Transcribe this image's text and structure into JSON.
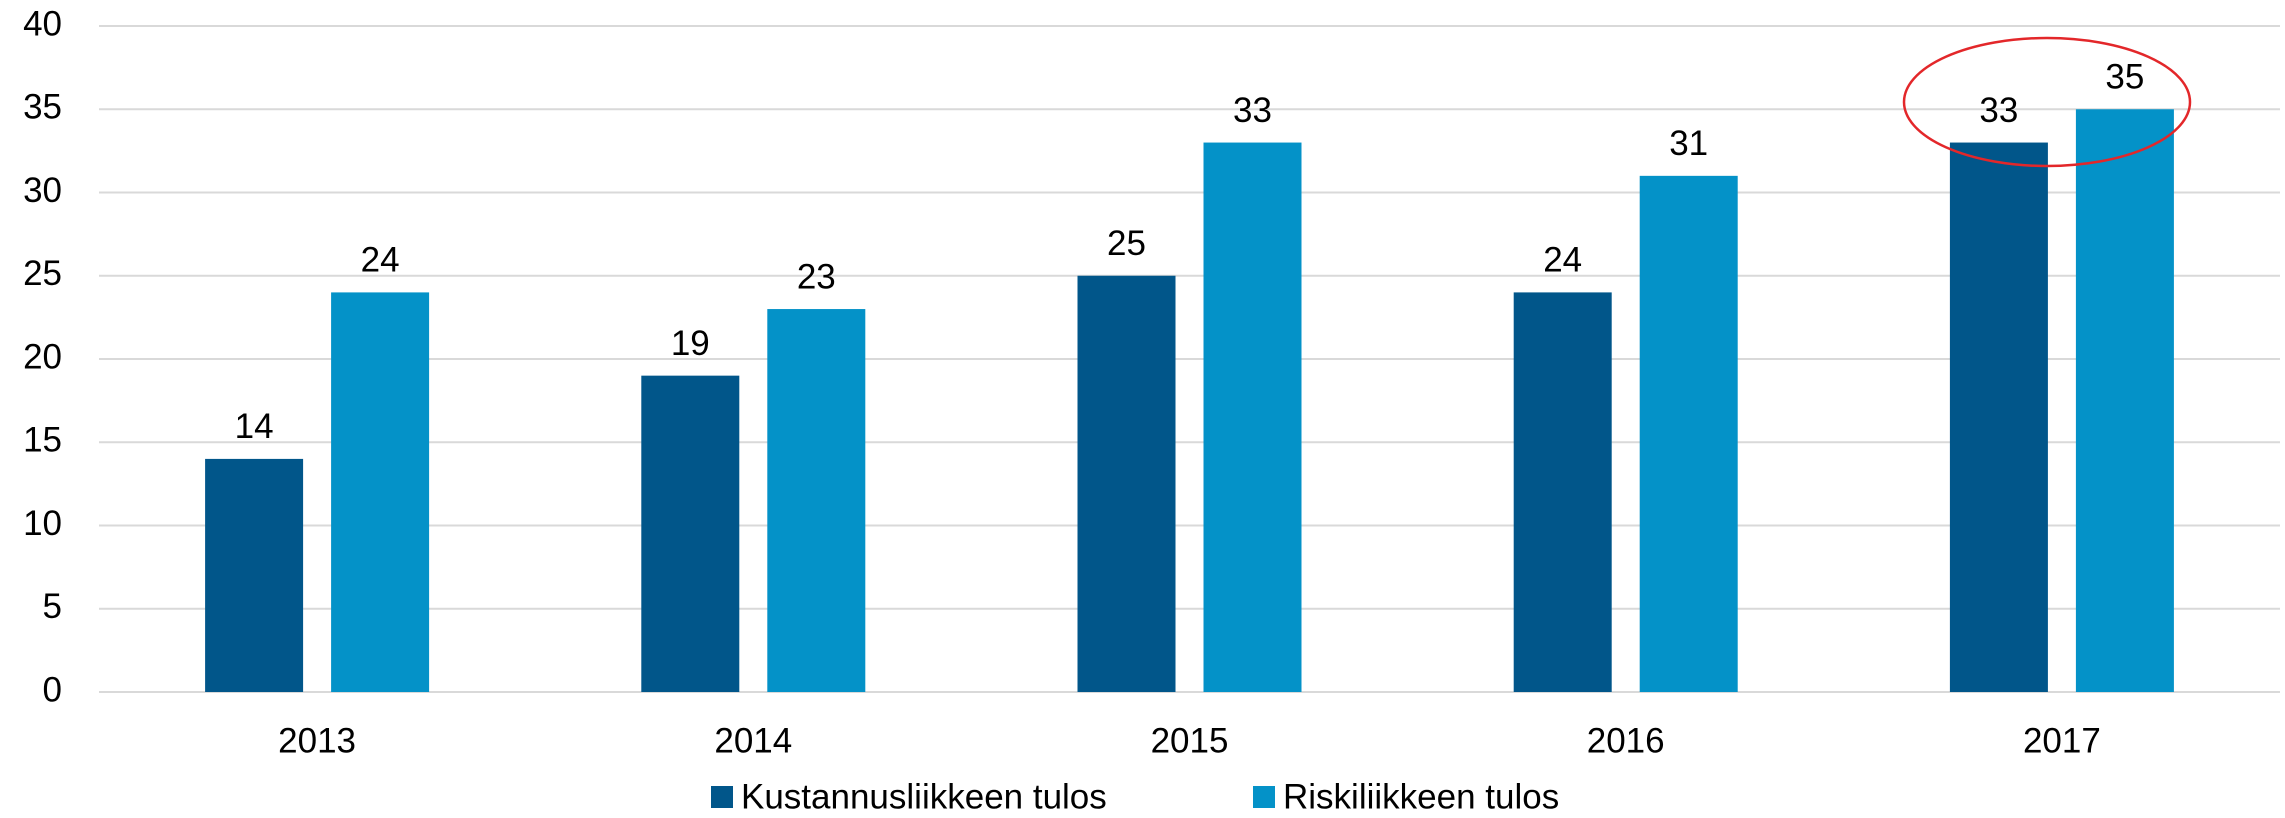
{
  "chart_data": {
    "type": "bar",
    "categories": [
      "2013",
      "2014",
      "2015",
      "2016",
      "2017"
    ],
    "series": [
      {
        "name": "Kustannusliikkeen tulos",
        "color": "#01568a",
        "values": [
          14,
          19,
          25,
          24,
          33
        ]
      },
      {
        "name": "Riskiliikkeen tulos",
        "color": "#0492c8",
        "values": [
          24,
          23,
          33,
          31,
          35
        ]
      }
    ],
    "ylim": [
      0,
      40
    ],
    "yticks": [
      0,
      5,
      10,
      15,
      20,
      25,
      30,
      35,
      40
    ],
    "grid": true,
    "legend": "bottom"
  }
}
